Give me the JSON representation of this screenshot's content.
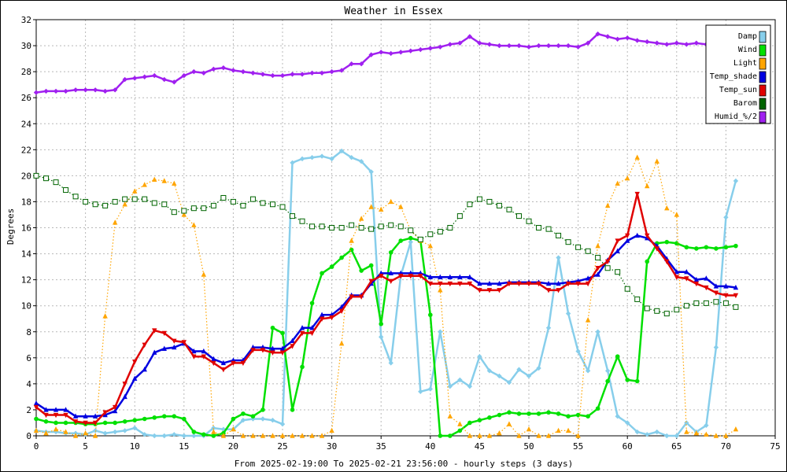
{
  "chart_data": {
    "type": "line",
    "title": "Weather in Essex",
    "xlabel": "From 2025-02-19:00 To 2025-02-21 23:56:00 - hourly steps (3 days)",
    "ylabel": "Degrees",
    "xlim": [
      0,
      75
    ],
    "ylim": [
      0,
      32
    ],
    "x_ticks": [
      "0",
      "5",
      "10",
      "15",
      "20",
      "25",
      "30",
      "35",
      "40",
      "45",
      "50",
      "55",
      "60",
      "65",
      "70",
      "75"
    ],
    "y_ticks": [
      "0",
      "2",
      "4",
      "6",
      "8",
      "10",
      "12",
      "14",
      "16",
      "18",
      "20",
      "22",
      "24",
      "26",
      "28",
      "30",
      "32"
    ],
    "grid": true,
    "legend_position": "top-right",
    "series": [
      {
        "name": "Damp",
        "color": "#87ceeb",
        "marker": "diamond",
        "dash": "solid",
        "values": [
          0.4,
          0.3,
          0.3,
          0.2,
          0.2,
          0.1,
          0.4,
          0.2,
          0.3,
          0.4,
          0.6,
          0.1,
          0.0,
          0.0,
          0.1,
          0.0,
          0.0,
          0.0,
          0.6,
          0.5,
          0.5,
          1.2,
          1.3,
          1.3,
          1.2,
          0.9,
          21.0,
          21.3,
          21.4,
          21.5,
          21.3,
          21.9,
          21.4,
          21.1,
          20.3,
          7.6,
          5.6,
          12.3,
          14.9,
          3.4,
          3.6,
          8.0,
          3.8,
          4.3,
          3.8,
          6.1,
          5.0,
          4.6,
          4.1,
          5.1,
          4.6,
          5.2,
          8.3,
          13.7,
          9.4,
          6.5,
          5.0,
          8.0,
          5.0,
          1.5,
          1.0,
          0.3,
          0.1,
          0.3,
          0.0,
          0.0,
          1.0,
          0.3,
          0.8,
          6.8,
          16.8,
          19.6
        ]
      },
      {
        "name": "Wind",
        "color": "#00e000",
        "marker": "circle",
        "dash": "solid",
        "values": [
          1.3,
          1.1,
          1.0,
          1.0,
          1.0,
          0.9,
          0.9,
          1.0,
          1.0,
          1.1,
          1.2,
          1.3,
          1.4,
          1.5,
          1.5,
          1.3,
          0.3,
          0.1,
          0.0,
          0.2,
          1.3,
          1.7,
          1.5,
          2.0,
          8.3,
          7.9,
          2.0,
          5.3,
          10.2,
          12.5,
          13.0,
          13.7,
          14.3,
          12.7,
          13.1,
          8.6,
          14.1,
          15.0,
          15.2,
          15.0,
          9.3,
          0.0,
          0.0,
          0.4,
          1.0,
          1.2,
          1.4,
          1.6,
          1.8,
          1.7,
          1.7,
          1.7,
          1.8,
          1.7,
          1.5,
          1.6,
          1.5,
          2.1,
          4.2,
          6.1,
          4.3,
          4.2,
          13.4,
          14.8,
          14.9,
          14.8,
          14.5,
          14.4,
          14.5,
          14.4,
          14.5,
          14.6
        ]
      },
      {
        "name": "Light",
        "color": "#ffa500",
        "marker": "triangle-up",
        "dash": "dotted",
        "values": [
          0.4,
          0.2,
          0.5,
          0.3,
          0.0,
          0.2,
          0.0,
          9.2,
          16.4,
          17.8,
          18.8,
          19.3,
          19.7,
          19.6,
          19.4,
          17.0,
          16.2,
          12.4,
          0.3,
          0.0,
          0.5,
          0.0,
          0.0,
          0.0,
          0.0,
          0.0,
          0.0,
          0.0,
          0.0,
          0.0,
          0.4,
          7.1,
          15.0,
          16.7,
          17.6,
          17.4,
          18.0,
          17.6,
          15.8,
          15.0,
          14.6,
          11.2,
          1.5,
          0.9,
          0.0,
          0.0,
          0.0,
          0.2,
          0.9,
          0.0,
          0.5,
          0.0,
          0.0,
          0.4,
          0.4,
          0.0,
          8.9,
          14.6,
          17.7,
          19.4,
          19.8,
          21.4,
          19.2,
          21.1,
          17.5,
          17.0,
          0.3,
          0.2,
          0.1,
          0.0,
          0.0,
          0.5
        ]
      },
      {
        "name": "Temp_shade",
        "color": "#0000e0",
        "marker": "triangle-up",
        "dash": "solid",
        "values": [
          2.5,
          2.0,
          2.0,
          2.0,
          1.5,
          1.5,
          1.5,
          1.6,
          1.9,
          3.0,
          4.4,
          5.1,
          6.4,
          6.7,
          6.8,
          7.1,
          6.5,
          6.5,
          5.9,
          5.6,
          5.8,
          5.8,
          6.8,
          6.8,
          6.7,
          6.7,
          7.3,
          8.3,
          8.3,
          9.3,
          9.3,
          9.9,
          10.8,
          10.8,
          11.7,
          12.5,
          12.5,
          12.5,
          12.5,
          12.5,
          12.2,
          12.2,
          12.2,
          12.2,
          12.2,
          11.7,
          11.7,
          11.7,
          11.8,
          11.8,
          11.8,
          11.8,
          11.7,
          11.7,
          11.8,
          11.9,
          12.1,
          12.4,
          13.5,
          14.2,
          15.0,
          15.4,
          15.2,
          14.6,
          13.6,
          12.6,
          12.6,
          12.0,
          12.1,
          11.5,
          11.5,
          11.4
        ]
      },
      {
        "name": "Temp_sun",
        "color": "#e00000",
        "marker": "triangle-down",
        "dash": "solid",
        "values": [
          2.2,
          1.6,
          1.6,
          1.6,
          1.1,
          1.0,
          1.0,
          1.8,
          2.2,
          4.0,
          5.7,
          7.0,
          8.1,
          7.9,
          7.3,
          7.2,
          6.1,
          6.1,
          5.6,
          5.1,
          5.6,
          5.6,
          6.6,
          6.6,
          6.4,
          6.4,
          6.9,
          7.9,
          7.9,
          9.0,
          9.1,
          9.6,
          10.7,
          10.7,
          11.9,
          12.3,
          11.9,
          12.3,
          12.3,
          12.3,
          11.7,
          11.7,
          11.7,
          11.7,
          11.7,
          11.2,
          11.2,
          11.2,
          11.7,
          11.7,
          11.7,
          11.7,
          11.2,
          11.2,
          11.7,
          11.7,
          11.7,
          12.9,
          13.4,
          15.0,
          15.4,
          18.6,
          15.4,
          14.4,
          13.4,
          12.2,
          12.1,
          11.7,
          11.4,
          11.0,
          10.8,
          10.8
        ]
      },
      {
        "name": "Barom",
        "color": "#006400",
        "marker": "square-open",
        "dash": "dotted",
        "values": [
          20.0,
          19.8,
          19.5,
          18.9,
          18.4,
          18.0,
          17.8,
          17.7,
          18.0,
          18.2,
          18.2,
          18.2,
          17.9,
          17.8,
          17.2,
          17.3,
          17.5,
          17.5,
          17.7,
          18.3,
          18.0,
          17.7,
          18.2,
          17.9,
          17.8,
          17.6,
          16.9,
          16.5,
          16.1,
          16.1,
          16.0,
          16.0,
          16.2,
          16.0,
          15.9,
          16.1,
          16.2,
          16.1,
          15.8,
          15.1,
          15.5,
          15.7,
          16.0,
          16.9,
          17.8,
          18.2,
          18.0,
          17.7,
          17.4,
          16.9,
          16.5,
          16.0,
          15.9,
          15.4,
          14.9,
          14.5,
          14.2,
          13.7,
          12.9,
          12.6,
          11.3,
          10.5,
          9.8,
          9.6,
          9.4,
          9.7,
          10.0,
          10.2,
          10.2,
          10.3,
          10.2,
          9.9
        ]
      },
      {
        "name": "Humid_%/2",
        "color": "#a020f0",
        "marker": "diamond",
        "dash": "solid",
        "values": [
          26.4,
          26.5,
          26.5,
          26.5,
          26.6,
          26.6,
          26.6,
          26.5,
          26.6,
          27.4,
          27.5,
          27.6,
          27.7,
          27.4,
          27.2,
          27.7,
          28.0,
          27.9,
          28.2,
          28.3,
          28.1,
          28.0,
          27.9,
          27.8,
          27.7,
          27.7,
          27.8,
          27.8,
          27.9,
          27.9,
          28.0,
          28.1,
          28.6,
          28.6,
          29.3,
          29.5,
          29.4,
          29.5,
          29.6,
          29.7,
          29.8,
          29.9,
          30.1,
          30.2,
          30.7,
          30.2,
          30.1,
          30.0,
          30.0,
          30.0,
          29.9,
          30.0,
          30.0,
          30.0,
          30.0,
          29.9,
          30.2,
          30.9,
          30.7,
          30.5,
          30.6,
          30.4,
          30.3,
          30.2,
          30.1,
          30.2,
          30.1,
          30.2,
          30.1,
          30.0,
          30.0,
          30.0
        ]
      }
    ]
  }
}
